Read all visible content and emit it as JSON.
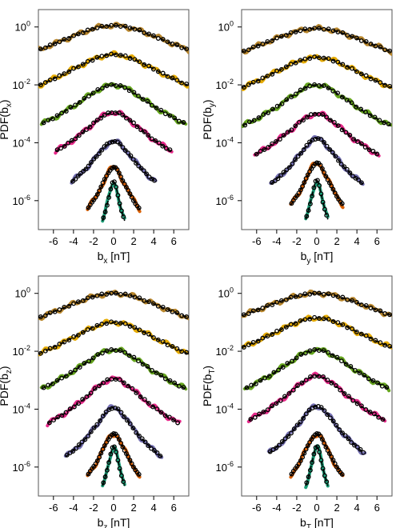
{
  "chart_data": [
    {
      "type": "line",
      "panel": "bx",
      "xlabel": "b",
      "xlabel_sub": "x",
      "xlabel_unit": "[nT]",
      "ylabel": "PDF(b",
      "ylabel_sub": "x",
      "ylabel_close": ")",
      "xlim": [
        -7.5,
        7.5
      ],
      "ylim_log10": [
        -7,
        0.6
      ],
      "y_scale": "log",
      "xticks": [
        -6,
        -4,
        -2,
        0,
        2,
        4,
        6
      ],
      "xtick_labels": [
        "-6",
        "-4",
        "-2",
        "0",
        "2",
        "4",
        "6"
      ],
      "yticks_log10": [
        0,
        -2,
        -4,
        -6
      ],
      "ytick_labels": [
        "10",
        "10",
        "10",
        "10"
      ],
      "ytick_exponents": [
        "0",
        "-2",
        "-4",
        "-6"
      ],
      "grid": false,
      "legend": "none",
      "series": [
        {
          "color": "#b8862c",
          "peak_log10": 0.05,
          "width": 6.0,
          "x_range": [
            -7.5,
            7.5
          ]
        },
        {
          "color": "#e6ab02",
          "peak_log10": -0.95,
          "width": 4.8,
          "x_range": [
            -7.5,
            7.5
          ]
        },
        {
          "color": "#66a61e",
          "peak_log10": -2.0,
          "width": 3.6,
          "x_range": [
            -7.2,
            7.2
          ]
        },
        {
          "color": "#e7298a",
          "peak_log10": -2.95,
          "width": 2.9,
          "x_range": [
            -5.8,
            5.8
          ]
        },
        {
          "color": "#7570b3",
          "peak_log10": -3.95,
          "width": 2.0,
          "x_range": [
            -4.2,
            4.2
          ]
        },
        {
          "color": "#d95f02",
          "peak_log10": -4.85,
          "width": 1.2,
          "x_range": [
            -2.6,
            2.6
          ]
        },
        {
          "color": "#1b9e77",
          "peak_log10": -5.35,
          "width": 0.55,
          "x_range": [
            -1.1,
            1.1
          ]
        }
      ]
    },
    {
      "type": "line",
      "panel": "by",
      "xlabel": "b",
      "xlabel_sub": "y",
      "xlabel_unit": "[nT]",
      "ylabel": "PDF(b",
      "ylabel_sub": "y",
      "ylabel_close": ")",
      "xlim": [
        -7.5,
        7.5
      ],
      "ylim_log10": [
        -7,
        0.6
      ],
      "y_scale": "log",
      "xticks": [
        -6,
        -4,
        -2,
        0,
        2,
        4,
        6
      ],
      "xtick_labels": [
        "-6",
        "-4",
        "-2",
        "0",
        "2",
        "4",
        "6"
      ],
      "yticks_log10": [
        0,
        -2,
        -4,
        -6
      ],
      "ytick_labels": [
        "10",
        "10",
        "10",
        "10"
      ],
      "ytick_exponents": [
        "0",
        "-2",
        "-4",
        "-6"
      ],
      "grid": false,
      "legend": "none",
      "series": [
        {
          "color": "#b8862c",
          "peak_log10": -0.05,
          "width": 6.2,
          "x_range": [
            -7.5,
            7.5
          ]
        },
        {
          "color": "#e6ab02",
          "peak_log10": -1.05,
          "width": 4.9,
          "x_range": [
            -7.5,
            7.5
          ]
        },
        {
          "color": "#66a61e",
          "peak_log10": -2.0,
          "width": 3.5,
          "x_range": [
            -7.4,
            7.4
          ]
        },
        {
          "color": "#e7298a",
          "peak_log10": -3.0,
          "width": 2.9,
          "x_range": [
            -6.2,
            6.2
          ]
        },
        {
          "color": "#7570b3",
          "peak_log10": -3.85,
          "width": 1.9,
          "x_range": [
            -4.6,
            4.6
          ]
        },
        {
          "color": "#d95f02",
          "peak_log10": -4.7,
          "width": 1.2,
          "x_range": [
            -2.6,
            2.6
          ]
        },
        {
          "color": "#1b9e77",
          "peak_log10": -5.3,
          "width": 0.55,
          "x_range": [
            -1.1,
            1.1
          ]
        }
      ]
    },
    {
      "type": "line",
      "panel": "bz",
      "xlabel": "b",
      "xlabel_sub": "z",
      "xlabel_unit": "[nT]",
      "ylabel": "PDF(b",
      "ylabel_sub": "z",
      "ylabel_close": ")",
      "xlim": [
        -7.5,
        7.5
      ],
      "ylim_log10": [
        -7,
        0.6
      ],
      "y_scale": "log",
      "xticks": [
        -6,
        -4,
        -2,
        0,
        2,
        4,
        6
      ],
      "xtick_labels": [
        "-6",
        "-4",
        "-2",
        "0",
        "2",
        "4",
        "6"
      ],
      "yticks_log10": [
        0,
        -2,
        -4,
        -6
      ],
      "ytick_labels": [
        "10",
        "10",
        "10",
        "10"
      ],
      "ytick_exponents": [
        "0",
        "-2",
        "-4",
        "-6"
      ],
      "grid": false,
      "legend": "none",
      "series": [
        {
          "color": "#b8862c",
          "peak_log10": 0.0,
          "width": 6.0,
          "x_range": [
            -7.5,
            7.5
          ]
        },
        {
          "color": "#e6ab02",
          "peak_log10": -1.0,
          "width": 4.7,
          "x_range": [
            -7.5,
            7.5
          ]
        },
        {
          "color": "#66a61e",
          "peak_log10": -1.95,
          "width": 3.6,
          "x_range": [
            -7.2,
            7.2
          ]
        },
        {
          "color": "#e7298a",
          "peak_log10": -2.95,
          "width": 2.8,
          "x_range": [
            -6.6,
            6.6
          ]
        },
        {
          "color": "#7570b3",
          "peak_log10": -3.95,
          "width": 1.8,
          "x_range": [
            -4.8,
            4.8
          ]
        },
        {
          "color": "#d95f02",
          "peak_log10": -4.85,
          "width": 1.2,
          "x_range": [
            -2.6,
            2.6
          ]
        },
        {
          "color": "#1b9e77",
          "peak_log10": -5.3,
          "width": 0.55,
          "x_range": [
            -1.1,
            1.1
          ]
        }
      ]
    },
    {
      "type": "line",
      "panel": "bT",
      "xlabel": "b",
      "xlabel_sub": "T",
      "xlabel_unit": "[nT]",
      "ylabel": "PDF(b",
      "ylabel_sub": "T",
      "ylabel_close": ")",
      "xlim": [
        -7.5,
        7.5
      ],
      "ylim_log10": [
        -7,
        0.6
      ],
      "y_scale": "log",
      "xticks": [
        -6,
        -4,
        -2,
        0,
        2,
        4,
        6
      ],
      "xtick_labels": [
        "-6",
        "-4",
        "-2",
        "0",
        "2",
        "4",
        "6"
      ],
      "yticks_log10": [
        0,
        -2,
        -4,
        -6
      ],
      "ytick_labels": [
        "10",
        "10",
        "10",
        "10"
      ],
      "ytick_exponents": [
        "0",
        "-2",
        "-4",
        "-6"
      ],
      "grid": false,
      "legend": "none",
      "series": [
        {
          "color": "#b8862c",
          "peak_log10": 0.0,
          "width": 6.5,
          "x_range": [
            -7.5,
            7.5
          ]
        },
        {
          "color": "#e6ab02",
          "peak_log10": -0.85,
          "width": 5.0,
          "x_range": [
            -7.5,
            7.5
          ]
        },
        {
          "color": "#66a61e",
          "peak_log10": -1.95,
          "width": 3.6,
          "x_range": [
            -7.2,
            7.2
          ]
        },
        {
          "color": "#e7298a",
          "peak_log10": -2.85,
          "width": 2.9,
          "x_range": [
            -6.8,
            6.8
          ]
        },
        {
          "color": "#7570b3",
          "peak_log10": -3.9,
          "width": 1.9,
          "x_range": [
            -4.8,
            4.8
          ]
        },
        {
          "color": "#d95f02",
          "peak_log10": -4.85,
          "width": 1.2,
          "x_range": [
            -2.6,
            2.6
          ]
        },
        {
          "color": "#1b9e77",
          "peak_log10": -5.3,
          "width": 0.55,
          "x_range": [
            -1.1,
            1.1
          ]
        }
      ]
    }
  ]
}
